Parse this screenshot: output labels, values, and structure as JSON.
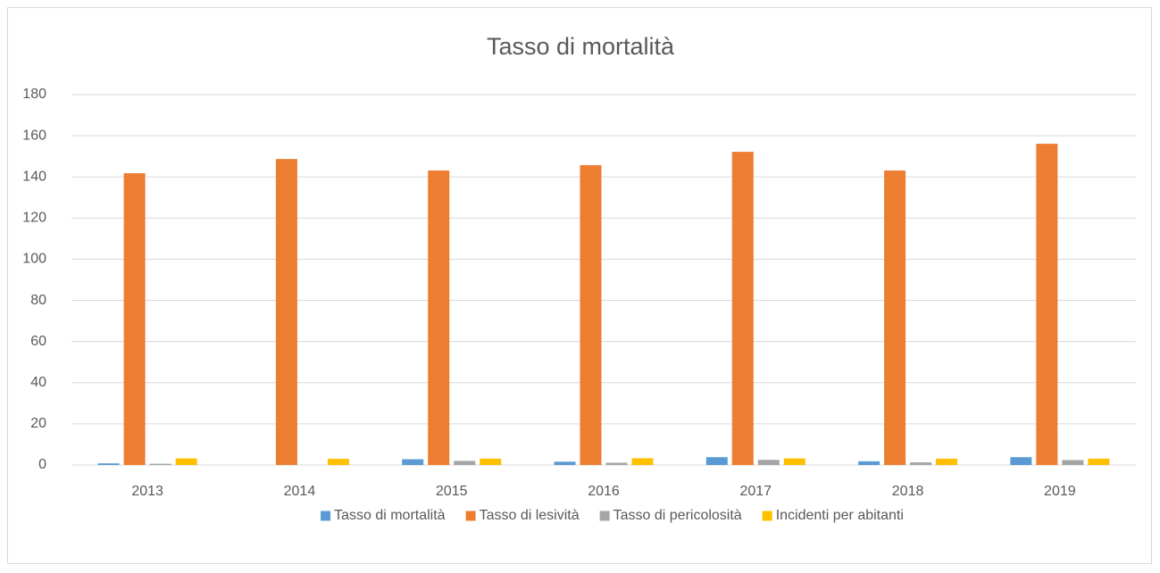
{
  "chart_data": {
    "type": "bar",
    "title": "Tasso di mortalità",
    "categories": [
      "2013",
      "2014",
      "2015",
      "2016",
      "2017",
      "2018",
      "2019"
    ],
    "series": [
      {
        "name": "Tasso di mortalità",
        "color": "#5b9bd5",
        "values": [
          0.8,
          0,
          2.8,
          1.6,
          3.8,
          1.8,
          3.8
        ]
      },
      {
        "name": "Tasso di lesività",
        "color": "#ed7d31",
        "values": [
          141.8,
          148.7,
          143.1,
          145.7,
          152.2,
          143.1,
          156.1
        ]
      },
      {
        "name": "Tasso di pericolosità",
        "color": "#a5a5a5",
        "values": [
          0.6,
          0,
          2,
          1.1,
          2.5,
          1.3,
          2.4
        ]
      },
      {
        "name": "Incidenti per abitanti",
        "color": "#ffc000",
        "values": [
          3.2,
          3,
          3.1,
          3.3,
          3.2,
          3.1,
          3.1
        ]
      }
    ],
    "ylim": [
      0,
      180
    ],
    "yticks": [
      0,
      20,
      40,
      60,
      80,
      100,
      120,
      140,
      160,
      180
    ],
    "grid": true,
    "legend": "bottom"
  }
}
